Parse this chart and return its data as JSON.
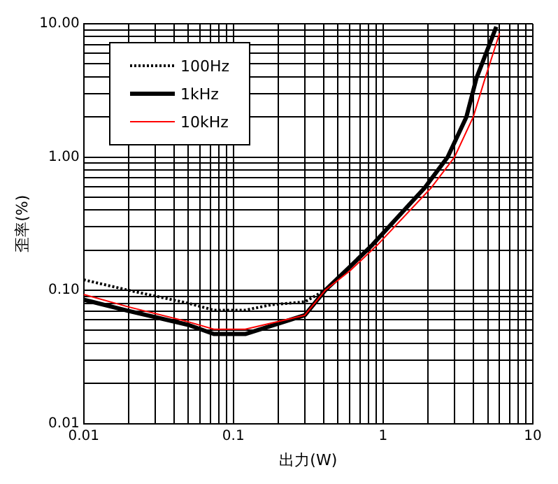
{
  "chart_data": {
    "type": "line",
    "xlabel": "出力(W)",
    "ylabel": "歪率(%)",
    "log": "xy",
    "grid": true,
    "legend": "top left",
    "marker": "none",
    "xlim": [
      0.01,
      10
    ],
    "ylim": [
      0.01,
      10
    ],
    "xticks": [
      0.01,
      {
        "value": 0.02,
        "label": null
      },
      {
        "value": 0.03,
        "label": null
      },
      {
        "value": 0.04,
        "label": null
      },
      {
        "value": 0.05,
        "label": null
      },
      {
        "value": 0.06,
        "label": null
      },
      {
        "value": 0.07,
        "label": null
      },
      {
        "value": 0.08,
        "label": null
      },
      {
        "value": 0.09,
        "label": null
      },
      0.1,
      {
        "value": 0.2,
        "label": null
      },
      {
        "value": 0.3,
        "label": null
      },
      {
        "value": 0.4,
        "label": null
      },
      {
        "value": 0.5,
        "label": null
      },
      {
        "value": 0.6,
        "label": null
      },
      {
        "value": 0.7,
        "label": null
      },
      {
        "value": 0.8,
        "label": null
      },
      {
        "value": 0.9,
        "label": null
      },
      1,
      {
        "value": 2,
        "label": null
      },
      {
        "value": 3,
        "label": null
      },
      {
        "value": 4,
        "label": null
      },
      {
        "value": 5,
        "label": null
      },
      {
        "value": 6,
        "label": null
      },
      {
        "value": 7,
        "label": null
      },
      {
        "value": 8,
        "label": null
      },
      {
        "value": 9,
        "label": null
      },
      10
    ],
    "yticks": [
      0.01,
      {
        "value": 0.02,
        "label": null
      },
      {
        "value": 0.03,
        "label": null
      },
      {
        "value": 0.04,
        "label": null
      },
      {
        "value": 0.05,
        "label": null
      },
      {
        "value": 0.06,
        "label": null
      },
      {
        "value": 0.07,
        "label": null
      },
      {
        "value": 0.08,
        "label": null
      },
      {
        "value": 0.09,
        "label": null
      },
      {
        "value": 0.1,
        "label": "0.10"
      },
      {
        "value": 0.2,
        "label": null
      },
      {
        "value": 0.3,
        "label": null
      },
      {
        "value": 0.4,
        "label": null
      },
      {
        "value": 0.5,
        "label": null
      },
      {
        "value": 0.6,
        "label": null
      },
      {
        "value": 0.7,
        "label": null
      },
      {
        "value": 0.8,
        "label": null
      },
      {
        "value": 0.9,
        "label": null
      },
      {
        "value": 1,
        "label": "1.00"
      },
      {
        "value": 2,
        "label": null
      },
      {
        "value": 3,
        "label": null
      },
      {
        "value": 4,
        "label": null
      },
      {
        "value": 5,
        "label": null
      },
      {
        "value": 6,
        "label": null
      },
      {
        "value": 7,
        "label": null
      },
      {
        "value": 8,
        "label": null
      },
      {
        "value": 9,
        "label": null
      },
      {
        "value": 10,
        "label": "10.00"
      }
    ],
    "series": [
      {
        "name": "100Hz",
        "color": "#000000",
        "line_style": "dotted",
        "x": [
          0.01,
          0.02,
          0.05,
          0.074,
          0.12,
          0.18,
          0.3,
          0.41,
          0.6,
          0.85,
          1.9,
          2.7,
          3.6,
          4.2,
          5.7
        ],
        "values": [
          0.12,
          0.1,
          0.08,
          0.071,
          0.071,
          0.078,
          0.082,
          0.1,
          0.15,
          0.22,
          0.59,
          1,
          2,
          3.9,
          9.5
        ]
      },
      {
        "name": "1kHz",
        "color": "#000000",
        "line_style": "solid",
        "x": [
          0.01,
          0.02,
          0.05,
          0.074,
          0.12,
          0.3,
          0.41,
          0.6,
          0.85,
          1.9,
          2.7,
          3.6,
          4.2,
          5.7
        ],
        "values": [
          0.085,
          0.07,
          0.055,
          0.047,
          0.047,
          0.065,
          0.1,
          0.15,
          0.22,
          0.59,
          1,
          2,
          3.9,
          9.5
        ]
      },
      {
        "name": "10kHz",
        "color": "#ff0000",
        "line_style": "solid",
        "x": [
          0.01,
          0.02,
          0.05,
          0.074,
          0.12,
          0.3,
          0.41,
          0.6,
          0.92,
          2.1,
          3,
          4,
          4.8,
          6
        ],
        "values": [
          0.093,
          0.075,
          0.058,
          0.051,
          0.051,
          0.065,
          0.1,
          0.14,
          0.22,
          0.59,
          1,
          2,
          3.9,
          8.5
        ]
      }
    ]
  }
}
